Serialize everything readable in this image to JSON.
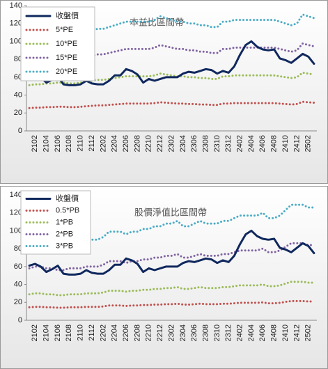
{
  "chart_data": [
    {
      "type": "line",
      "title": "本益比區間帶",
      "categories": [
        null,
        "2102",
        null,
        "2104",
        null,
        "2106",
        null,
        "2108",
        null,
        "2110",
        null,
        "2112",
        null,
        "2202",
        null,
        "2204",
        null,
        "2206",
        null,
        "2208",
        null,
        "2210",
        null,
        "2212",
        null,
        "2302",
        null,
        "2304",
        null,
        "2306",
        null,
        "2308",
        null,
        "2310",
        null,
        "2312",
        null,
        "2402",
        null,
        "2404",
        null,
        "2406",
        null,
        "2408",
        null,
        "2410",
        null,
        "2412",
        null,
        "2502",
        null
      ],
      "ylim": [
        0,
        140
      ],
      "yticks": [
        0,
        20,
        40,
        60,
        80,
        100,
        120,
        140
      ],
      "grid": false,
      "legend": "upper-left",
      "series": [
        {
          "name": "收盤價",
          "color": "#10285e",
          "style": "solid",
          "values": [
            61,
            63,
            60,
            54,
            57,
            61,
            52,
            51,
            51,
            52,
            56,
            53,
            52,
            52,
            56,
            62,
            62,
            69,
            67,
            63,
            54,
            58,
            56,
            58,
            60,
            60,
            60,
            64,
            66,
            65,
            67,
            69,
            68,
            64,
            67,
            65,
            72,
            85,
            96,
            100,
            94,
            91,
            90,
            91,
            81,
            79,
            76,
            81,
            86,
            83,
            75
          ]
        },
        {
          "name": "5*PE",
          "color": "#c0504d",
          "style": "dotted",
          "values": [
            25.5,
            26,
            26,
            26.5,
            26.5,
            27,
            27,
            26.5,
            26.5,
            27,
            27.5,
            28,
            28.5,
            28.5,
            29,
            29.5,
            30,
            30.5,
            30.5,
            30.5,
            30.5,
            30.5,
            31,
            32,
            31.5,
            31,
            30.5,
            30.5,
            30,
            30,
            29.5,
            29.5,
            29,
            29,
            30.5,
            30.5,
            31,
            31,
            31,
            31,
            31,
            31,
            31,
            31,
            30.5,
            30,
            29.5,
            30,
            32.5,
            32,
            31.5
          ]
        },
        {
          "name": "10*PE",
          "color": "#9bbb59",
          "style": "dotted",
          "values": [
            51,
            52,
            52,
            53,
            53,
            54,
            54,
            53,
            53,
            54,
            55,
            56,
            57,
            57,
            58,
            59,
            60,
            61,
            61,
            61,
            61,
            61,
            62,
            64,
            63,
            62,
            61,
            61,
            60,
            60,
            59,
            59,
            58,
            58,
            61,
            61,
            62,
            62,
            62,
            62,
            62,
            62,
            62,
            62,
            61,
            60,
            59,
            60,
            65,
            64,
            63
          ]
        },
        {
          "name": "15*PE",
          "color": "#8064a2",
          "style": "dotted",
          "values": [
            76.5,
            78,
            78,
            79.5,
            79.5,
            81,
            81,
            79.5,
            79.5,
            81,
            82.5,
            84,
            85.5,
            85.5,
            87,
            88.5,
            90,
            91.5,
            91.5,
            91.5,
            91.5,
            91.5,
            93,
            96,
            94.5,
            93,
            91.5,
            91.5,
            90,
            90,
            88.5,
            88.5,
            87,
            87,
            91.5,
            91.5,
            93,
            93,
            93,
            93,
            93,
            93,
            93,
            93,
            91.5,
            90,
            88.5,
            90,
            97.5,
            96,
            94.5
          ]
        },
        {
          "name": "20*PE",
          "color": "#4bacc6",
          "style": "dotted",
          "values": [
            102,
            104,
            104,
            106,
            106,
            108,
            108,
            106,
            106,
            108,
            110,
            112,
            114,
            114,
            116,
            118,
            120,
            122,
            122,
            122,
            122,
            122,
            124,
            128,
            126,
            124,
            122,
            122,
            120,
            120,
            118,
            118,
            116,
            116,
            122,
            122,
            124,
            124,
            124,
            124,
            124,
            124,
            124,
            124,
            122,
            120,
            118,
            120,
            130,
            128,
            126
          ]
        }
      ]
    },
    {
      "type": "line",
      "title": "股價淨值比區間帶",
      "categories": [
        null,
        "2102",
        null,
        "2104",
        null,
        "2106",
        null,
        "2108",
        null,
        "2110",
        null,
        "2112",
        null,
        "2202",
        null,
        "2204",
        null,
        "2206",
        null,
        "2208",
        null,
        "2210",
        null,
        "2212",
        null,
        "2302",
        null,
        "2304",
        null,
        "2306",
        null,
        "2308",
        null,
        "2310",
        null,
        "2312",
        null,
        "2402",
        null,
        "2404",
        null,
        "2406",
        null,
        "2408",
        null,
        "2410",
        null,
        "2412",
        null,
        "2502",
        null
      ],
      "ylim": [
        0,
        140
      ],
      "yticks": [
        0,
        20,
        40,
        60,
        80,
        100,
        120,
        140
      ],
      "grid": false,
      "legend": "upper-left",
      "series": [
        {
          "name": "收盤價",
          "color": "#10285e",
          "style": "solid",
          "values": [
            61,
            63,
            60,
            54,
            57,
            61,
            52,
            51,
            51,
            52,
            56,
            53,
            52,
            52,
            56,
            62,
            62,
            69,
            67,
            63,
            54,
            58,
            56,
            58,
            60,
            60,
            60,
            64,
            66,
            65,
            67,
            69,
            68,
            64,
            67,
            65,
            72,
            85,
            96,
            100,
            94,
            91,
            90,
            91,
            81,
            79,
            76,
            81,
            86,
            83,
            75
          ]
        },
        {
          "name": "0.5*PB",
          "color": "#c0504d",
          "style": "dotted",
          "values": [
            14.5,
            15,
            15,
            14.5,
            14.5,
            14,
            14,
            14.5,
            14.5,
            14.5,
            15,
            15,
            15,
            15.5,
            16.5,
            16.5,
            16.5,
            16,
            16.5,
            16.5,
            17,
            17,
            17.5,
            17.5,
            18,
            18,
            18.5,
            17.5,
            17.5,
            18,
            18.5,
            18,
            18,
            18,
            18.5,
            18.5,
            19,
            19.5,
            19.5,
            19.5,
            19.5,
            20,
            19,
            19,
            19.5,
            20.5,
            21.5,
            21.5,
            21.5,
            21,
            21
          ]
        },
        {
          "name": "1*PB",
          "color": "#9bbb59",
          "style": "dotted",
          "values": [
            29,
            30,
            30,
            29,
            29,
            28,
            28,
            29,
            29,
            29,
            30,
            30,
            30,
            31,
            33,
            33,
            33,
            32,
            33,
            33,
            34,
            34,
            35,
            35,
            36,
            36,
            37,
            35,
            35,
            36,
            37,
            36,
            36,
            36,
            37,
            37,
            38,
            39,
            39,
            39,
            39,
            40,
            38,
            38,
            39,
            41,
            43,
            43,
            43,
            42,
            42
          ]
        },
        {
          "name": "2*PB",
          "color": "#8064a2",
          "style": "dotted",
          "values": [
            58,
            60,
            60,
            58,
            58,
            56,
            56,
            58,
            58,
            58,
            60,
            60,
            60,
            62,
            66,
            66,
            66,
            64,
            66,
            66,
            68,
            68,
            70,
            70,
            72,
            72,
            74,
            70,
            70,
            72,
            74,
            72,
            72,
            72,
            74,
            74,
            76,
            78,
            78,
            78,
            78,
            80,
            76,
            76,
            78,
            82,
            86,
            86,
            86,
            84,
            84
          ]
        },
        {
          "name": "3*PB",
          "color": "#4bacc6",
          "style": "dotted",
          "values": [
            87,
            90,
            90,
            87,
            87,
            84,
            84,
            87,
            87,
            87,
            90,
            90,
            90,
            93,
            99,
            99,
            99,
            96,
            99,
            99,
            102,
            102,
            105,
            105,
            108,
            108,
            111,
            105,
            105,
            108,
            111,
            108,
            108,
            108,
            111,
            111,
            114,
            117,
            117,
            117,
            117,
            120,
            114,
            114,
            117,
            123,
            129,
            129,
            129,
            126,
            126
          ]
        }
      ]
    }
  ]
}
